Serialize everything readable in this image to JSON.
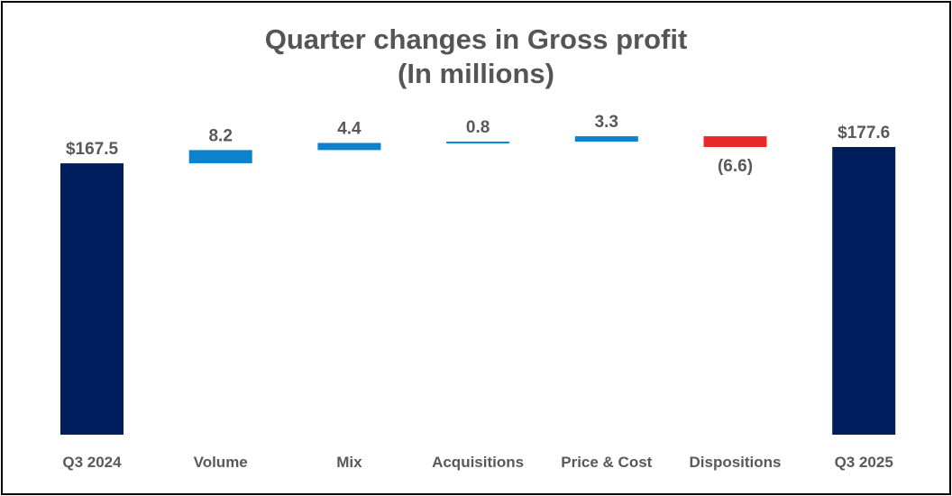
{
  "chart_data": {
    "type": "waterfall",
    "title": "Quarter changes in Gross profit",
    "subtitle": "(In millions)",
    "categories": [
      "Q3 2024",
      "Volume",
      "Mix",
      "Acquisitions",
      "Price & Cost",
      "Dispositions",
      "Q3 2025"
    ],
    "values": [
      167.5,
      8.2,
      4.4,
      0.8,
      3.3,
      -6.6,
      177.6
    ],
    "kinds": [
      "total",
      "delta",
      "delta",
      "delta",
      "delta",
      "delta",
      "total"
    ],
    "data_labels": [
      "$167.5",
      "8.2",
      "4.4",
      "0.8",
      "3.3",
      "(6.6)",
      "$177.6"
    ],
    "ylim": [
      0,
      177.6
    ],
    "colors": {
      "total": "#001E5E",
      "increase": "#0A82CC",
      "decrease": "#E8292A"
    },
    "legend": "none",
    "grid": false
  }
}
